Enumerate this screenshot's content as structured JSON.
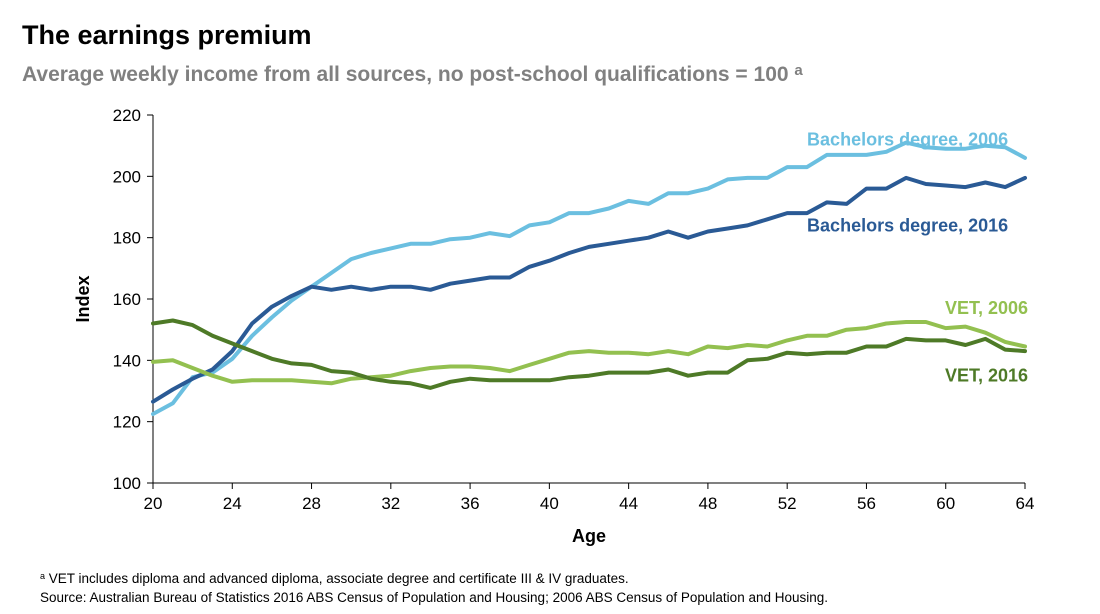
{
  "header": {
    "title": "The earnings premium",
    "subtitle": "Average weekly income from all sources, no post-school qualifications = 100",
    "subtitle_marker": "a"
  },
  "footnotes": {
    "marker": "a",
    "note": "VET includes diploma and advanced diploma, associate degree and certificate III & IV graduates.",
    "source": "Source: Australian Bureau of Statistics 2016 ABS Census of Population and Housing; 2006 ABS Census of Population and Housing."
  },
  "chart_data": {
    "type": "line",
    "xlabel": "Age",
    "ylabel": "Index",
    "xlim": [
      20,
      64
    ],
    "ylim": [
      100,
      220
    ],
    "xticks": [
      20,
      24,
      28,
      32,
      36,
      40,
      44,
      48,
      52,
      56,
      60,
      64
    ],
    "yticks": [
      100,
      120,
      140,
      160,
      180,
      200,
      220
    ],
    "grid": false,
    "legend": "direct-labels",
    "x": [
      20,
      21,
      22,
      23,
      24,
      25,
      26,
      27,
      28,
      29,
      30,
      31,
      32,
      33,
      34,
      35,
      36,
      37,
      38,
      39,
      40,
      41,
      42,
      43,
      44,
      45,
      46,
      47,
      48,
      49,
      50,
      51,
      52,
      53,
      54,
      55,
      56,
      57,
      58,
      59,
      60,
      61,
      62,
      63,
      64
    ],
    "series": [
      {
        "name": "Bachelors degree, 2006",
        "color": "#6BBFE0",
        "values": [
          122.5,
          126,
          134.5,
          136,
          140.5,
          148,
          154,
          159.5,
          164,
          168.5,
          173,
          175,
          176.5,
          178,
          178,
          179.5,
          180,
          181.5,
          180.5,
          184,
          185,
          188,
          188,
          189.5,
          192,
          191,
          194.5,
          194.5,
          196,
          199,
          199.5,
          199.5,
          203,
          203,
          207,
          207,
          207,
          208,
          211,
          209.5,
          209,
          209,
          210,
          209.5,
          206
        ]
      },
      {
        "name": "Bachelors degree, 2016",
        "color": "#2A5A95",
        "values": [
          126.5,
          130.5,
          134,
          137,
          143,
          152,
          157.5,
          161,
          164,
          163,
          164,
          163,
          164,
          164,
          163,
          165,
          166,
          167,
          167,
          170.5,
          172.5,
          175,
          177,
          178,
          179,
          180,
          182,
          180,
          182,
          183,
          184,
          186,
          188,
          188,
          191.5,
          191,
          196,
          196,
          199.5,
          197.5,
          197,
          196.5,
          198,
          196.5,
          199.5
        ]
      },
      {
        "name": "VET, 2006",
        "color": "#93C050",
        "values": [
          139.5,
          140,
          137.5,
          135,
          133,
          133.5,
          133.5,
          133.5,
          133,
          132.5,
          134,
          134.5,
          135,
          136.5,
          137.5,
          138,
          138,
          137.5,
          136.5,
          138.5,
          140.5,
          142.5,
          143,
          142.5,
          142.5,
          142,
          143,
          142,
          144.5,
          144,
          145,
          144.5,
          146.5,
          148,
          148,
          150,
          150.5,
          152,
          152.5,
          152.5,
          150.5,
          151,
          149,
          146,
          144.5
        ]
      },
      {
        "name": "VET, 2016",
        "color": "#4E7A27",
        "values": [
          152,
          153,
          151.5,
          148,
          145.5,
          143,
          140.5,
          139,
          138.5,
          136.5,
          136,
          134,
          133,
          132.5,
          131,
          133,
          134,
          133.5,
          133.5,
          133.5,
          133.5,
          134.5,
          135,
          136,
          136,
          136,
          137,
          135,
          136,
          136,
          140,
          140.5,
          142.5,
          142,
          142.5,
          142.5,
          144.5,
          144.5,
          147,
          146.5,
          146.5,
          145,
          147,
          143.5,
          143
        ]
      }
    ],
    "labels": [
      {
        "text": "Bachelors degree, 2006",
        "x": 63,
        "y": 212
      },
      {
        "text": "Bachelors degree, 2016",
        "x": 63,
        "y": 184
      },
      {
        "text": "VET, 2006",
        "x": 64,
        "y": 157
      },
      {
        "text": "VET, 2016",
        "x": 64,
        "y": 135
      }
    ]
  }
}
